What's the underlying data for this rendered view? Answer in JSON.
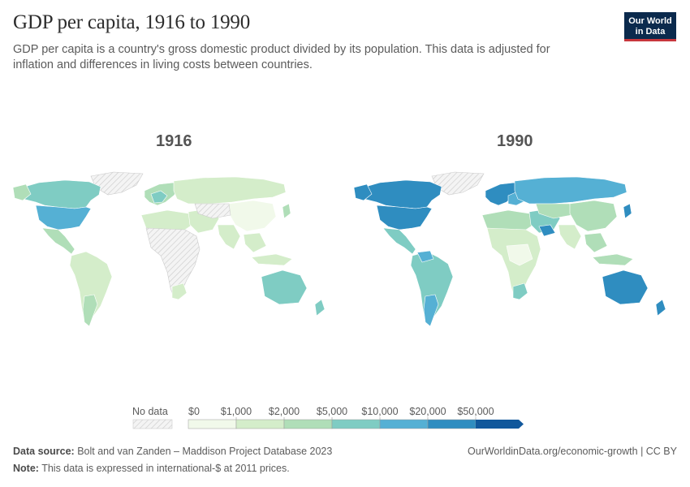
{
  "header": {
    "title": "GDP per capita, 1916 to 1990",
    "subtitle": "GDP per capita is a country's gross domestic product divided by its population. This data is adjusted for inflation and differences in living costs between countries."
  },
  "logo": {
    "line1": "Our World",
    "line2": "in Data"
  },
  "maps": [
    {
      "year": "1916"
    },
    {
      "year": "1990"
    }
  ],
  "legend": {
    "no_data_label": "No data",
    "bins": [
      "$0",
      "$1,000",
      "$2,000",
      "$5,000",
      "$10,000",
      "$20,000",
      "$50,000"
    ],
    "colors": [
      "#f1f9ea",
      "#d4edca",
      "#b0deb8",
      "#7fccc3",
      "#55b0d4",
      "#2f8dc0",
      "#11589c"
    ],
    "no_data_color": "#eeeeee"
  },
  "footer": {
    "source_label": "Data source:",
    "source_text": "Bolt and van Zanden – Maddison Project Database 2023",
    "note_label": "Note:",
    "note_text": "This data is expressed in international-$ at 2011 prices.",
    "link": "OurWorldinData.org/economic-growth | CC BY"
  }
}
